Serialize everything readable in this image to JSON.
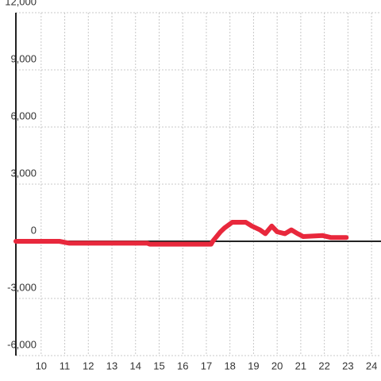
{
  "chart_data": {
    "type": "line",
    "x": [
      8.93,
      10.77,
      11.2,
      14.5,
      14.6,
      17.2,
      17.27,
      17.6,
      17.77,
      18.1,
      18.67,
      18.93,
      19.27,
      19.5,
      19.77,
      20.0,
      20.33,
      20.6,
      20.87,
      21.1,
      21.93,
      22.27,
      22.93
    ],
    "series": [
      {
        "name": "",
        "color": "#e8283c",
        "values": [
          0,
          0,
          -100,
          -100,
          -150,
          -150,
          0,
          500,
          700,
          1000,
          1000,
          800,
          600,
          400,
          800,
          500,
          400,
          600,
          400,
          250,
          300,
          200,
          200
        ]
      }
    ],
    "xlim": [
      8.93,
      24.4
    ],
    "xticks": [
      10,
      11,
      12,
      13,
      14,
      15,
      16,
      17,
      18,
      19,
      20,
      21,
      22,
      23,
      24
    ],
    "ylim": [
      -6000,
      12000
    ],
    "yticks": [
      {
        "value": -6000,
        "label": "-6,000"
      },
      {
        "value": -3000,
        "label": "-3,000"
      },
      0,
      {
        "value": 3000,
        "label": "3,000"
      },
      {
        "value": 6000,
        "label": "6,000"
      },
      {
        "value": 9000,
        "label": "9,000"
      },
      {
        "value": 12000,
        "label": "12,000"
      }
    ],
    "grid": true
  }
}
